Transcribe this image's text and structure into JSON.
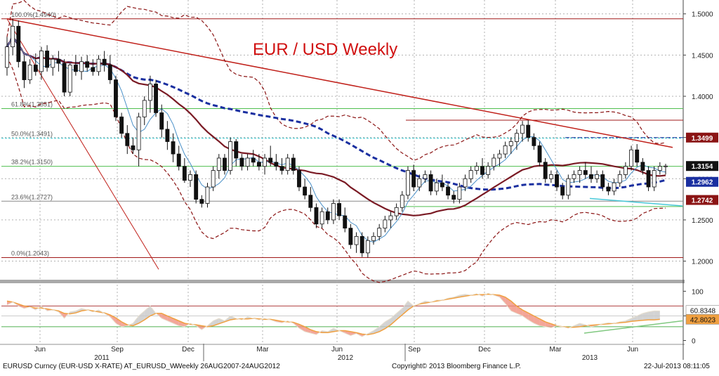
{
  "chart_data": {
    "type": "candlestick",
    "title": "EUR / USD Weekly",
    "title_color": "#d01010",
    "instrument": "EURUSD Curncy (EUR-USD X-RATE) AT_EURUSD_W",
    "period_info": "Weekly 26AUG2007-24AUG2012",
    "copyright": "Copyright© 2013 Bloomberg Finance L.P.",
    "timestamp": "22-Jul-2013 08:11:05",
    "x_month_labels": [
      "Jun",
      "Sep",
      "Dec",
      "Mar",
      "Jun",
      "Sep",
      "Dec",
      "Mar",
      "Jun"
    ],
    "x_year_labels": [
      "2011",
      "2012",
      "2013"
    ],
    "price_axis": {
      "ylim": [
        1.18,
        1.51
      ],
      "ticks": [
        "1.5000",
        "1.4500",
        "1.4000",
        "1.3500",
        "1.3000",
        "1.2500",
        "1.2000"
      ],
      "grid": true
    },
    "indicator_axis": {
      "ylim": [
        -5,
        112
      ],
      "ticks": [
        "100",
        "50",
        "0"
      ]
    },
    "fibonacci_levels": [
      {
        "label": "100.0%(1.4940)",
        "value": 1.494
      },
      {
        "label": "61.8%(1.3851)",
        "value": 1.3851
      },
      {
        "label": "50.0%(1.3491)",
        "value": 1.3491
      },
      {
        "label": "38.2%(1.3150)",
        "value": 1.315
      },
      {
        "label": "23.6%(1.2727)",
        "value": 1.2727
      },
      {
        "label": "0.0%(1.2043)",
        "value": 1.2043
      }
    ],
    "price_badges": [
      {
        "label": "1.3499",
        "bg": "#8b1414",
        "fg": "#ffffff"
      },
      {
        "label": "1.3154",
        "bg": "#111111",
        "fg": "#ffffff"
      },
      {
        "label": "1.2962",
        "bg": "#1a2fa0",
        "fg": "#ffffff"
      },
      {
        "label": "1.2742",
        "bg": "#8b1414",
        "fg": "#ffffff"
      }
    ],
    "indicator_badges": [
      {
        "label": "60.8348",
        "bg": "#ffffff",
        "fg": "#111111"
      },
      {
        "label": "42.8023",
        "bg": "#f0a040",
        "fg": "#111111"
      }
    ],
    "candles": [
      [
        1.435,
        1.472,
        1.425,
        1.46
      ],
      [
        1.46,
        1.494,
        1.45,
        1.485
      ],
      [
        1.485,
        1.492,
        1.435,
        1.442
      ],
      [
        1.442,
        1.45,
        1.41,
        1.42
      ],
      [
        1.42,
        1.445,
        1.415,
        1.438
      ],
      [
        1.438,
        1.452,
        1.425,
        1.43
      ],
      [
        1.43,
        1.46,
        1.42,
        1.455
      ],
      [
        1.455,
        1.462,
        1.43,
        1.435
      ],
      [
        1.435,
        1.45,
        1.425,
        1.445
      ],
      [
        1.445,
        1.455,
        1.43,
        1.44
      ],
      [
        1.44,
        1.445,
        1.4,
        1.405
      ],
      [
        1.405,
        1.44,
        1.4,
        1.438
      ],
      [
        1.438,
        1.45,
        1.425,
        1.43
      ],
      [
        1.43,
        1.448,
        1.42,
        1.442
      ],
      [
        1.442,
        1.45,
        1.43,
        1.435
      ],
      [
        1.435,
        1.445,
        1.425,
        1.43
      ],
      [
        1.43,
        1.45,
        1.425,
        1.445
      ],
      [
        1.445,
        1.455,
        1.43,
        1.438
      ],
      [
        1.438,
        1.45,
        1.415,
        1.42
      ],
      [
        1.42,
        1.425,
        1.37,
        1.375
      ],
      [
        1.375,
        1.38,
        1.35,
        1.355
      ],
      [
        1.355,
        1.365,
        1.33,
        1.34
      ],
      [
        1.34,
        1.35,
        1.33,
        1.335
      ],
      [
        1.335,
        1.38,
        1.315,
        1.375
      ],
      [
        1.375,
        1.4,
        1.365,
        1.395
      ],
      [
        1.395,
        1.425,
        1.38,
        1.415
      ],
      [
        1.415,
        1.42,
        1.375,
        1.38
      ],
      [
        1.38,
        1.39,
        1.35,
        1.36
      ],
      [
        1.36,
        1.37,
        1.335,
        1.345
      ],
      [
        1.345,
        1.355,
        1.32,
        1.33
      ],
      [
        1.33,
        1.34,
        1.31,
        1.315
      ],
      [
        1.315,
        1.325,
        1.295,
        1.298
      ],
      [
        1.298,
        1.31,
        1.29,
        1.305
      ],
      [
        1.305,
        1.31,
        1.27,
        1.275
      ],
      [
        1.275,
        1.28,
        1.265,
        1.27
      ],
      [
        1.27,
        1.295,
        1.265,
        1.29
      ],
      [
        1.29,
        1.315,
        1.285,
        1.31
      ],
      [
        1.31,
        1.33,
        1.3,
        1.325
      ],
      [
        1.325,
        1.33,
        1.305,
        1.31
      ],
      [
        1.31,
        1.35,
        1.305,
        1.345
      ],
      [
        1.345,
        1.348,
        1.315,
        1.325
      ],
      [
        1.325,
        1.33,
        1.31,
        1.315
      ],
      [
        1.315,
        1.33,
        1.31,
        1.325
      ],
      [
        1.325,
        1.335,
        1.315,
        1.32
      ],
      [
        1.32,
        1.33,
        1.31,
        1.315
      ],
      [
        1.315,
        1.33,
        1.305,
        1.325
      ],
      [
        1.325,
        1.34,
        1.315,
        1.32
      ],
      [
        1.32,
        1.33,
        1.31,
        1.315
      ],
      [
        1.315,
        1.325,
        1.305,
        1.31
      ],
      [
        1.31,
        1.33,
        1.305,
        1.325
      ],
      [
        1.325,
        1.33,
        1.305,
        1.31
      ],
      [
        1.31,
        1.315,
        1.285,
        1.29
      ],
      [
        1.29,
        1.3,
        1.275,
        1.28
      ],
      [
        1.28,
        1.29,
        1.26,
        1.265
      ],
      [
        1.265,
        1.27,
        1.24,
        1.245
      ],
      [
        1.245,
        1.265,
        1.24,
        1.26
      ],
      [
        1.26,
        1.265,
        1.245,
        1.25
      ],
      [
        1.25,
        1.275,
        1.245,
        1.27
      ],
      [
        1.27,
        1.275,
        1.25,
        1.255
      ],
      [
        1.255,
        1.265,
        1.235,
        1.24
      ],
      [
        1.24,
        1.245,
        1.215,
        1.22
      ],
      [
        1.22,
        1.235,
        1.21,
        1.23
      ],
      [
        1.23,
        1.235,
        1.205,
        1.21
      ],
      [
        1.21,
        1.23,
        1.2043,
        1.225
      ],
      [
        1.225,
        1.235,
        1.22,
        1.23
      ],
      [
        1.23,
        1.245,
        1.225,
        1.24
      ],
      [
        1.24,
        1.255,
        1.235,
        1.25
      ],
      [
        1.25,
        1.26,
        1.24,
        1.255
      ],
      [
        1.255,
        1.27,
        1.25,
        1.265
      ],
      [
        1.265,
        1.285,
        1.26,
        1.28
      ],
      [
        1.28,
        1.315,
        1.275,
        1.31
      ],
      [
        1.31,
        1.317,
        1.285,
        1.29
      ],
      [
        1.29,
        1.305,
        1.285,
        1.3
      ],
      [
        1.3,
        1.31,
        1.295,
        1.305
      ],
      [
        1.305,
        1.31,
        1.28,
        1.285
      ],
      [
        1.285,
        1.3,
        1.28,
        1.295
      ],
      [
        1.295,
        1.305,
        1.285,
        1.29
      ],
      [
        1.29,
        1.295,
        1.275,
        1.28
      ],
      [
        1.28,
        1.285,
        1.27,
        1.275
      ],
      [
        1.275,
        1.295,
        1.27,
        1.29
      ],
      [
        1.29,
        1.305,
        1.285,
        1.3
      ],
      [
        1.3,
        1.315,
        1.295,
        1.31
      ],
      [
        1.31,
        1.32,
        1.305,
        1.315
      ],
      [
        1.315,
        1.325,
        1.3,
        1.305
      ],
      [
        1.305,
        1.32,
        1.3,
        1.315
      ],
      [
        1.315,
        1.33,
        1.31,
        1.325
      ],
      [
        1.325,
        1.335,
        1.315,
        1.33
      ],
      [
        1.33,
        1.345,
        1.325,
        1.34
      ],
      [
        1.34,
        1.35,
        1.33,
        1.345
      ],
      [
        1.345,
        1.36,
        1.335,
        1.355
      ],
      [
        1.355,
        1.37,
        1.345,
        1.365
      ],
      [
        1.365,
        1.371,
        1.345,
        1.35
      ],
      [
        1.35,
        1.355,
        1.335,
        1.34
      ],
      [
        1.34,
        1.345,
        1.315,
        1.32
      ],
      [
        1.32,
        1.325,
        1.295,
        1.3
      ],
      [
        1.3,
        1.31,
        1.295,
        1.305
      ],
      [
        1.305,
        1.31,
        1.285,
        1.29
      ],
      [
        1.29,
        1.295,
        1.275,
        1.28
      ],
      [
        1.28,
        1.305,
        1.275,
        1.3
      ],
      [
        1.3,
        1.31,
        1.295,
        1.305
      ],
      [
        1.305,
        1.315,
        1.295,
        1.31
      ],
      [
        1.31,
        1.32,
        1.3,
        1.305
      ],
      [
        1.305,
        1.315,
        1.295,
        1.3
      ],
      [
        1.3,
        1.31,
        1.295,
        1.305
      ],
      [
        1.305,
        1.31,
        1.285,
        1.29
      ],
      [
        1.29,
        1.295,
        1.28,
        1.285
      ],
      [
        1.285,
        1.3,
        1.28,
        1.295
      ],
      [
        1.295,
        1.31,
        1.29,
        1.305
      ],
      [
        1.305,
        1.32,
        1.3,
        1.315
      ],
      [
        1.315,
        1.34,
        1.31,
        1.335
      ],
      [
        1.335,
        1.342,
        1.315,
        1.32
      ],
      [
        1.32,
        1.325,
        1.305,
        1.31
      ],
      [
        1.31,
        1.315,
        1.285,
        1.29
      ],
      [
        1.29,
        1.315,
        1.285,
        1.31
      ],
      [
        1.31,
        1.32,
        1.305,
        1.315
      ],
      [
        1.315,
        1.318,
        1.305,
        1.3154
      ]
    ],
    "oscillator_k": [
      72,
      78,
      70,
      65,
      68,
      62,
      70,
      60,
      62,
      58,
      45,
      58,
      60,
      65,
      62,
      58,
      62,
      55,
      48,
      35,
      28,
      30,
      35,
      50,
      60,
      70,
      55,
      45,
      40,
      35,
      30,
      28,
      35,
      30,
      22,
      30,
      40,
      45,
      40,
      50,
      45,
      42,
      48,
      45,
      42,
      45,
      42,
      38,
      36,
      40,
      35,
      25,
      18,
      15,
      12,
      20,
      18,
      25,
      20,
      15,
      10,
      14,
      8,
      14,
      20,
      28,
      38,
      45,
      55,
      65,
      80,
      70,
      75,
      80,
      78,
      82,
      82,
      86,
      88,
      92,
      94,
      92,
      95,
      90,
      96,
      92,
      88,
      75,
      60,
      55,
      50,
      42,
      35,
      30,
      28,
      26,
      30,
      28,
      25,
      30,
      35,
      32,
      28,
      30,
      34,
      36,
      35,
      38,
      40,
      45,
      50,
      55,
      58,
      60,
      60
    ],
    "oscillator_d": [
      80,
      78,
      74,
      70,
      68,
      66,
      66,
      64,
      62,
      60,
      55,
      54,
      56,
      60,
      62,
      60,
      58,
      56,
      52,
      46,
      38,
      32,
      30,
      35,
      42,
      50,
      55,
      55,
      50,
      45,
      40,
      35,
      33,
      32,
      30,
      28,
      30,
      34,
      38,
      42,
      44,
      44,
      44,
      45,
      44,
      43,
      43,
      41,
      39,
      38,
      37,
      33,
      28,
      22,
      18,
      16,
      16,
      18,
      20,
      20,
      18,
      16,
      13,
      12,
      14,
      18,
      24,
      32,
      42,
      52,
      62,
      70,
      74,
      76,
      78,
      80,
      82,
      84,
      86,
      88,
      90,
      92,
      93,
      93,
      94,
      93,
      92,
      88,
      80,
      70,
      62,
      56,
      50,
      44,
      38,
      34,
      30,
      28,
      27,
      27,
      28,
      30,
      31,
      32,
      33,
      34,
      35,
      36,
      37,
      39,
      40,
      41,
      42,
      42,
      43
    ]
  }
}
